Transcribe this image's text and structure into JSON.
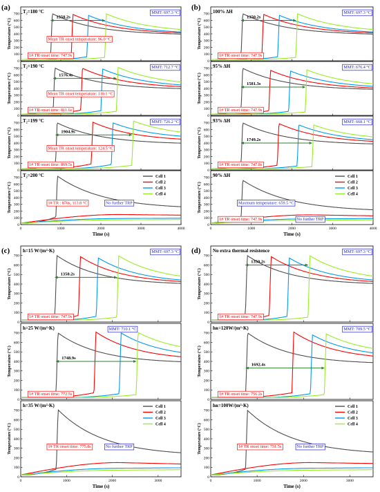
{
  "colors": {
    "Cell 1": "#4d4d4d",
    "Cell 2": "#ff0000",
    "Cell 3": "#0099ee",
    "Cell 4": "#99ee22",
    "red_anno": "#ff0000",
    "blue_anno": "#1f1fd0",
    "arrow": "#2e7d32"
  },
  "chart_data": [
    {
      "panel": "(a)",
      "type": "line",
      "xlabel": "Time (s)",
      "xlim": [
        0,
        4000
      ],
      "xticks": [
        0,
        1000,
        2000,
        3000,
        4000
      ],
      "legend": [
        "Cell 1",
        "Cell 2",
        "Cell 3",
        "Cell 4"
      ],
      "subplots": [
        {
          "label": "T₂=180 °C",
          "ylabel": "Temperature (°C)",
          "ylim": [
            0,
            800
          ],
          "yticks": [
            0,
            100,
            200,
            300,
            400,
            500,
            600,
            700
          ],
          "onsets": [
            747.9,
            1260,
            1650,
            2098.1
          ],
          "peaks": [
            700,
            690,
            675,
            697.3
          ],
          "ends": [
            380,
            390,
            395,
            415
          ],
          "pre": [
            80,
            70,
            60,
            50
          ],
          "decay": 1300,
          "interval": {
            "label": "1350.2s",
            "x1": 747.9,
            "x2": 2098.1,
            "y": 600
          },
          "annotations": [
            {
              "text": "MMT: 697.3 °C",
              "color": "blue",
              "pos": "right"
            },
            {
              "text": "Mean TR onset temperature: 96.0 °C",
              "color": "red",
              "pos": "mid"
            },
            {
              "text": "1# TR onset time: 747.9s",
              "color": "red",
              "pos": "bottom"
            }
          ]
        },
        {
          "label": "T₂=190 °C",
          "ylabel": "Temperature (°C)",
          "ylim": [
            0,
            800
          ],
          "yticks": [
            0,
            100,
            200,
            300,
            400,
            500,
            600,
            700
          ],
          "onsets": [
            811.6,
            1500,
            2000,
            2388
          ],
          "peaks": [
            705,
            700,
            690,
            712.7
          ],
          "ends": [
            380,
            395,
            405,
            430
          ],
          "pre": [
            90,
            80,
            70,
            60
          ],
          "decay": 1300,
          "interval": {
            "label": "1576.4s",
            "x1": 811.6,
            "x2": 2388,
            "y": 550
          },
          "annotations": [
            {
              "text": "MMT: 712.7 °C",
              "color": "blue",
              "pos": "right"
            },
            {
              "text": "Mean TR onset temperature: 110.1 °C",
              "color": "red",
              "pos": "mid"
            },
            {
              "text": "1# TR onset time: 811.6s",
              "color": "red",
              "pos": "bottom"
            }
          ]
        },
        {
          "label": "T₂=199 °C",
          "ylabel": "Temperature (°C)",
          "ylim": [
            0,
            800
          ],
          "yticks": [
            0,
            100,
            200,
            300,
            400,
            500,
            600,
            700
          ],
          "onsets": [
            869.5,
            1760,
            2260,
            2774.4
          ],
          "peaks": [
            700,
            710,
            700,
            726.2
          ],
          "ends": [
            380,
            420,
            450,
            480
          ],
          "pre": [
            100,
            90,
            80,
            70
          ],
          "decay": 1300,
          "interval": {
            "label": "1904.9s",
            "x1": 869.5,
            "x2": 2774.4,
            "y": 520
          },
          "annotations": [
            {
              "text": "MMT: 726.2 °C",
              "color": "blue",
              "pos": "right"
            },
            {
              "text": "Mean TR onset temperature: 124.5 °C",
              "color": "red",
              "pos": "mid"
            },
            {
              "text": "1# TR onset time: 869.5s",
              "color": "red",
              "pos": "bottom"
            }
          ]
        },
        {
          "label": "T₂=200 °C",
          "ylabel": "Temperature (°C)",
          "ylim": [
            0,
            800
          ],
          "yticks": [
            0,
            100,
            200,
            300,
            400,
            500,
            600,
            700
          ],
          "onsets": [
            876
          ],
          "peaks": [
            720
          ],
          "ends": [
            230
          ],
          "pre": [
            113.8
          ],
          "decay": 1400,
          "flat": [
            {
              "start": 20,
              "peak": 150,
              "end": 140
            },
            {
              "start": 20,
              "peak": 90,
              "end": 95
            },
            {
              "start": 20,
              "peak": 70,
              "end": 75
            }
          ],
          "legend_here": true,
          "annotations": [
            {
              "text": "1# TR : 876s, 113.8 °C",
              "color": "red",
              "pos": "mid"
            },
            {
              "text": "No further TRP",
              "color": "blue",
              "pos": "midright"
            }
          ]
        }
      ]
    },
    {
      "panel": "(b)",
      "type": "line",
      "xlabel": "Time (s)",
      "xlim": [
        0,
        4000
      ],
      "xticks": [
        0,
        1000,
        2000,
        3000,
        4000
      ],
      "legend": [
        "Cell 1",
        "Cell 2",
        "Cell 3",
        "Cell 4"
      ],
      "subplots": [
        {
          "label": "100% ΔH",
          "ylabel": "Temperature (°C)",
          "ylim": [
            0,
            800
          ],
          "yticks": [
            0,
            100,
            200,
            300,
            400,
            500,
            600,
            700
          ],
          "onsets": [
            747.9,
            1260,
            1650,
            2098.1
          ],
          "peaks": [
            700,
            690,
            675,
            697.3
          ],
          "ends": [
            380,
            390,
            395,
            415
          ],
          "pre": [
            80,
            70,
            60,
            50
          ],
          "decay": 1300,
          "interval": {
            "label": "1350.2s",
            "x1": 747.9,
            "x2": 2098.1,
            "y": 600
          },
          "annotations": [
            {
              "text": "MMT: 697.3 °C",
              "color": "blue",
              "pos": "right"
            },
            {
              "text": "1# TR onset time: 747.9s",
              "color": "red",
              "pos": "bottom"
            }
          ]
        },
        {
          "label": "95% ΔH",
          "ylabel": "Temperature (°C)",
          "ylim": [
            0,
            800
          ],
          "yticks": [
            0,
            100,
            200,
            300,
            400,
            500,
            600,
            700
          ],
          "onsets": [
            747.9,
            1430,
            1920,
            2329.2
          ],
          "peaks": [
            700,
            670,
            660,
            676.4
          ],
          "ends": [
            370,
            380,
            390,
            410
          ],
          "pre": [
            80,
            70,
            60,
            50
          ],
          "decay": 1300,
          "interval": {
            "label": "1581.3s",
            "x1": 747.9,
            "x2": 2329.2,
            "y": 420
          },
          "annotations": [
            {
              "text": "MMT: 676.4 °C",
              "color": "blue",
              "pos": "right"
            },
            {
              "text": "1# TR onset time: 747.9s",
              "color": "red",
              "pos": "bottom"
            }
          ]
        },
        {
          "label": "93% ΔH",
          "ylabel": "Temperature (°C)",
          "ylim": [
            0,
            800
          ],
          "yticks": [
            0,
            100,
            200,
            300,
            400,
            500,
            600,
            700
          ],
          "onsets": [
            747.8,
            1640,
            2130,
            2497
          ],
          "peaks": [
            700,
            690,
            670,
            668.1
          ],
          "ends": [
            370,
            390,
            400,
            430
          ],
          "pre": [
            80,
            70,
            60,
            50
          ],
          "decay": 1300,
          "interval": {
            "label": "1749.2s",
            "x1": 747.8,
            "x2": 2497,
            "y": 400
          },
          "annotations": [
            {
              "text": "MMT: 668.1 °C",
              "color": "blue",
              "pos": "right"
            },
            {
              "text": "1# TR onset time: 747.8s",
              "color": "red",
              "pos": "bottom"
            }
          ]
        },
        {
          "label": "90% ΔH",
          "ylabel": "Temperature (°C)",
          "ylim": [
            0,
            800
          ],
          "yticks": [
            0,
            100,
            200,
            300,
            400,
            500,
            600,
            700
          ],
          "onsets": [
            747.9
          ],
          "peaks": [
            659.5
          ],
          "ends": [
            190
          ],
          "pre": [
            80
          ],
          "decay": 1400,
          "flat": [
            {
              "start": 20,
              "peak": 145,
              "end": 130
            },
            {
              "start": 20,
              "peak": 85,
              "end": 90
            },
            {
              "start": 20,
              "peak": 65,
              "end": 70
            }
          ],
          "legend_here": true,
          "annotations": [
            {
              "text": "Maxmum temperature: 659.5 °C",
              "color": "blue",
              "pos": "mid"
            },
            {
              "text": "1# TR onset time: 747.9s",
              "color": "red",
              "pos": "bottom"
            },
            {
              "text": "No further TRP",
              "color": "blue",
              "pos": "bottomright"
            }
          ]
        }
      ]
    },
    {
      "panel": "(c)",
      "type": "line",
      "xlabel": "Time (s)",
      "xlim": [
        0,
        3500
      ],
      "xticks": [
        0,
        1000,
        2000,
        3000
      ],
      "legend": [
        "Cell 1",
        "Cell 2",
        "Cell 3",
        "Cell 4"
      ],
      "subplots": [
        {
          "label": "h=15 W/(m²·K)",
          "ylabel": "Temperature (°C)",
          "ylim": [
            0,
            800
          ],
          "yticks": [
            0,
            100,
            200,
            300,
            400,
            500,
            600,
            700
          ],
          "onsets": [
            747.9,
            1260,
            1650,
            2098.1
          ],
          "peaks": [
            700,
            690,
            675,
            697.3
          ],
          "ends": [
            390,
            400,
            405,
            420
          ],
          "pre": [
            80,
            70,
            60,
            50
          ],
          "decay": 1100,
          "interval": {
            "label": "1350.2s",
            "x1": 747.9,
            "x2": 2098.1,
            "y": 470
          },
          "annotations": [
            {
              "text": "MMT: 697.3 °C",
              "color": "blue",
              "pos": "right"
            },
            {
              "text": "1# TR onset time: 747.9s",
              "color": "red",
              "pos": "bottom"
            }
          ]
        },
        {
          "label": "h=25 W/(m²·K)",
          "ylabel": "Temperature (°C)",
          "ylim": [
            0,
            800
          ],
          "yticks": [
            0,
            100,
            200,
            300,
            400,
            500,
            600,
            700
          ],
          "onsets": [
            772.5,
            1600,
            2150,
            2521.4
          ],
          "peaks": [
            700,
            710.1,
            700,
            705
          ],
          "ends": [
            380,
            410,
            430,
            470
          ],
          "pre": [
            80,
            70,
            60,
            50
          ],
          "decay": 1100,
          "interval": {
            "label": "1748.9s",
            "x1": 772.5,
            "x2": 2521.4,
            "y": 400
          },
          "annotations": [
            {
              "text": "MMT: 710.1 °C",
              "color": "blue",
              "pos": "top"
            },
            {
              "text": "1# TR onset time: 772.5s",
              "color": "red",
              "pos": "bottom"
            }
          ]
        },
        {
          "label": "h=35 W/(m²·K)",
          "ylabel": "Temperature (°C)",
          "ylim": [
            0,
            800
          ],
          "yticks": [
            0,
            100,
            200,
            300,
            400,
            500,
            600,
            700
          ],
          "onsets": [
            775.8
          ],
          "peaks": [
            705
          ],
          "ends": [
            220
          ],
          "pre": [
            80
          ],
          "decay": 1200,
          "flat": [
            {
              "start": 20,
              "peak": 150,
              "end": 135
            },
            {
              "start": 20,
              "peak": 90,
              "end": 95
            },
            {
              "start": 20,
              "peak": 70,
              "end": 75
            }
          ],
          "legend_here": true,
          "annotations": [
            {
              "text": "1# TR onset time: 775.8s",
              "color": "red",
              "pos": "mid"
            },
            {
              "text": "No further TRP",
              "color": "blue",
              "pos": "midright"
            }
          ]
        }
      ]
    },
    {
      "panel": "(d)",
      "type": "line",
      "xlabel": "Time (s)",
      "xlim": [
        0,
        3500
      ],
      "xticks": [
        0,
        1000,
        2000,
        3000
      ],
      "legend": [
        "Cell 1",
        "Cell 2",
        "Cell 3",
        "Cell 4"
      ],
      "subplots": [
        {
          "label": "No extra thermal resistence",
          "ylabel": "Temperature (°C)",
          "ylim": [
            0,
            800
          ],
          "yticks": [
            0,
            100,
            200,
            300,
            400,
            500,
            600,
            700
          ],
          "onsets": [
            747.9,
            1260,
            1650,
            2098.1
          ],
          "peaks": [
            700,
            690,
            675,
            697.3
          ],
          "ends": [
            390,
            400,
            405,
            420
          ],
          "pre": [
            80,
            70,
            60,
            50
          ],
          "decay": 1100,
          "interval": {
            "label": "1350.2s",
            "x1": 747.9,
            "x2": 2098.1,
            "y": 600
          },
          "annotations": [
            {
              "text": "MMT: 697.3 °C",
              "color": "blue",
              "pos": "right"
            },
            {
              "text": "1# TR onset time: 747.9s",
              "color": "red",
              "pos": "bottom"
            }
          ]
        },
        {
          "label": "hʀ=120W/(m²·K)",
          "ylabel": "Temperature (°C)",
          "ylim": [
            0,
            800
          ],
          "yticks": [
            0,
            100,
            200,
            300,
            400,
            500,
            600,
            700
          ],
          "onsets": [
            756.2,
            1750,
            2150,
            2448.6
          ],
          "peaks": [
            700,
            709.5,
            680,
            690
          ],
          "ends": [
            370,
            410,
            430,
            460
          ],
          "pre": [
            80,
            70,
            60,
            50
          ],
          "decay": 1100,
          "interval": {
            "label": "1692.4s",
            "x1": 756.2,
            "x2": 2448.6,
            "y": 330
          },
          "annotations": [
            {
              "text": "MMT: 709.5 °C",
              "color": "blue",
              "pos": "right"
            },
            {
              "text": "1# TR onset time: 756.2s",
              "color": "red",
              "pos": "bottom"
            }
          ]
        },
        {
          "label": "hʀ=100W/(m²·K)",
          "ylabel": "Temperature (°C)",
          "ylim": [
            0,
            800
          ],
          "yticks": [
            0,
            100,
            200,
            300,
            400,
            500,
            600,
            700
          ],
          "onsets": [
            751.5
          ],
          "peaks": [
            700
          ],
          "ends": [
            230
          ],
          "pre": [
            80
          ],
          "decay": 1200,
          "flat": [
            {
              "start": 20,
              "peak": 150,
              "end": 140
            },
            {
              "start": 20,
              "peak": 90,
              "end": 95
            },
            {
              "start": 20,
              "peak": 70,
              "end": 75
            }
          ],
          "legend_here": true,
          "annotations": [
            {
              "text": "1# TR onset time: 751.5s",
              "color": "red",
              "pos": "mid"
            },
            {
              "text": "No further TRP",
              "color": "blue",
              "pos": "midright"
            }
          ]
        }
      ]
    }
  ]
}
